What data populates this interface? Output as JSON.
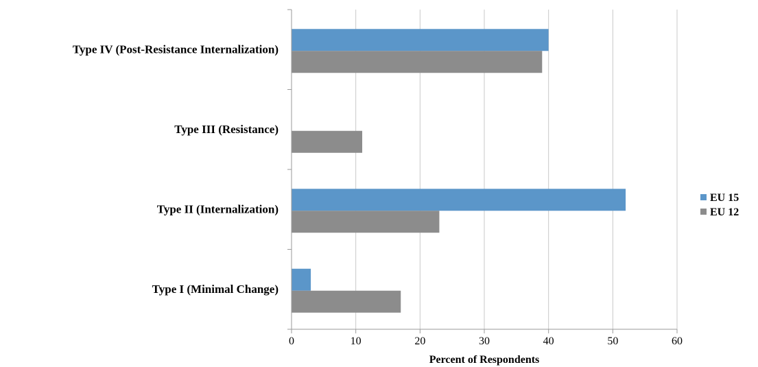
{
  "chart_data": {
    "type": "bar",
    "orientation": "horizontal",
    "categories": [
      "Type IV (Post-Resistance Internalization)",
      "Type III (Resistance)",
      "Type II (Internalization)",
      "Type I (Minimal Change)"
    ],
    "series": [
      {
        "name": "EU 15",
        "color": "#5b96c9",
        "values": [
          40,
          0,
          52,
          3
        ]
      },
      {
        "name": "EU 12",
        "color": "#8c8c8c",
        "values": [
          39,
          11,
          23,
          17
        ]
      }
    ],
    "xlabel": "Percent of Respondents",
    "ylabel": "",
    "xlim": [
      0,
      60
    ],
    "xticks": [
      0,
      10,
      20,
      30,
      40,
      50,
      60
    ],
    "grid": true,
    "legend_position": "right"
  }
}
